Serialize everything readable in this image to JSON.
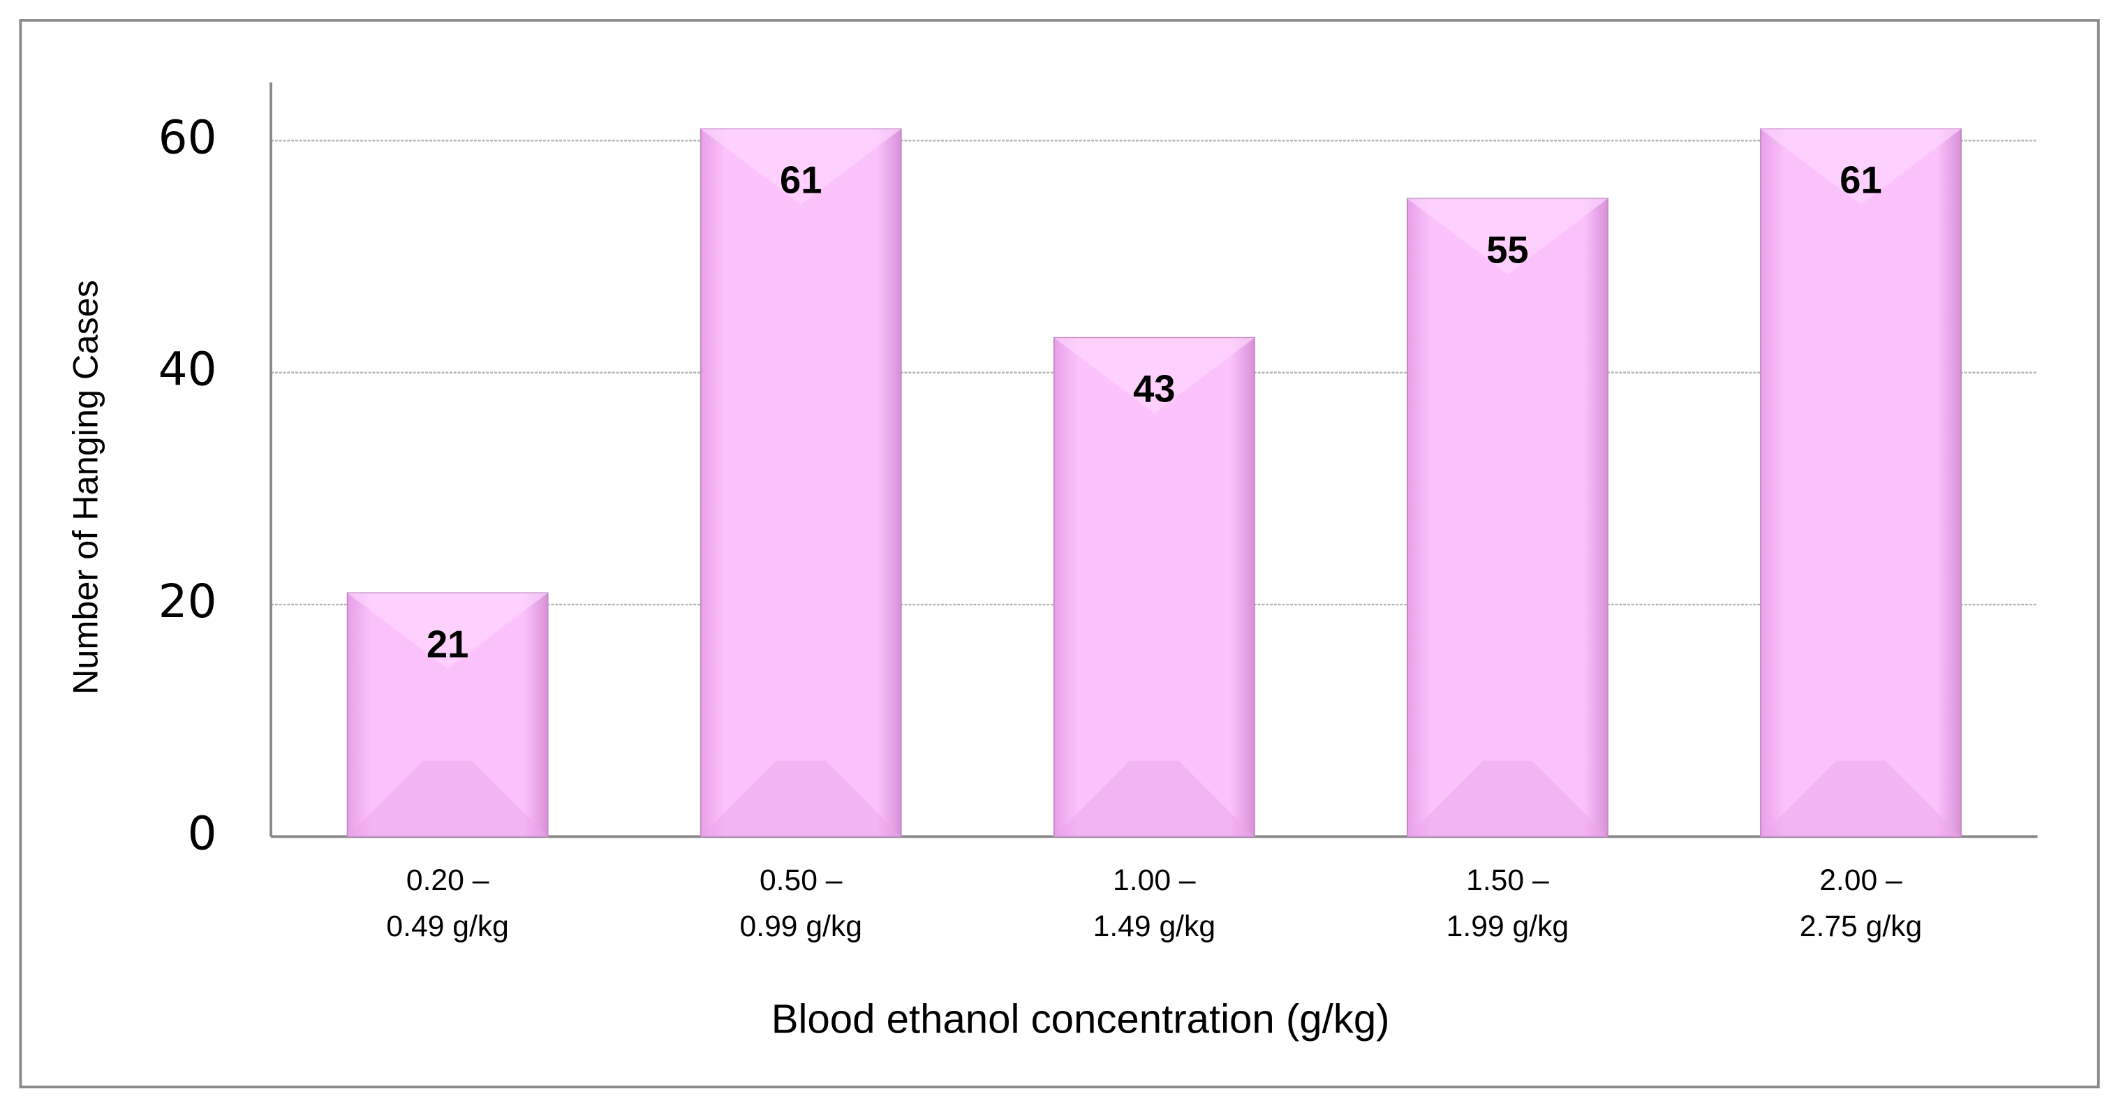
{
  "chart_data": {
    "type": "bar",
    "x_label": "Blood ethanol concentration (g/kg)",
    "y_label": "Number of Hanging Cases",
    "categories": [
      "0.20 –\n0.49 g/kg",
      "0.50 –\n0.99 g/kg",
      "1.00 –\n1.49 g/kg",
      "1.50 –\n1.99 g/kg",
      "2.00 –\n2.75 g/kg"
    ],
    "values": [
      21,
      61,
      43,
      55,
      61
    ],
    "color": "#f9b9f9",
    "ylim": [
      0,
      65
    ],
    "yticks": [
      0,
      20,
      40,
      60
    ],
    "grid": true
  }
}
